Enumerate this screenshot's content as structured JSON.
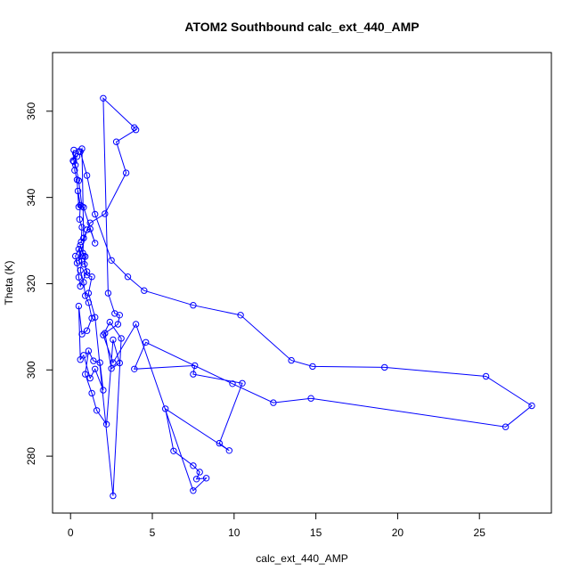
{
  "chart_data": {
    "type": "line",
    "title": "ATOM2 Southbound calc_ext_440_AMP",
    "xlabel": "calc_ext_440_AMP",
    "ylabel": "Theta (K)",
    "xlim": [
      -1.1,
      29.4
    ],
    "ylim": [
      266.8,
      373.6
    ],
    "x_ticks": [
      0,
      5,
      10,
      15,
      20,
      25
    ],
    "y_ticks": [
      280,
      300,
      320,
      340,
      360
    ],
    "x_tick_labels": [
      "0",
      "5",
      "10",
      "15",
      "20",
      "25"
    ],
    "y_tick_labels": [
      "280",
      "300",
      "320",
      "340",
      "360"
    ],
    "grid": false,
    "legend": "none",
    "series_color": "#0000ff",
    "marker": "open-circle",
    "series": [
      {
        "x": [
          0.2,
          0.15,
          0.3,
          0.25,
          0.4,
          0.5,
          0.45,
          0.6,
          0.55,
          0.7,
          0.65,
          0.8,
          0.75,
          0.9,
          0.85,
          1.0,
          0.6,
          0.5,
          0.4,
          0.3,
          0.5,
          0.7,
          0.6,
          0.8,
          0.9,
          1.1,
          1.3,
          1.0,
          0.7,
          0.5,
          0.6,
          0.8,
          1.2,
          1.5,
          2.0,
          1.8,
          1.4,
          1.1,
          0.9,
          1.3,
          1.6,
          2.2,
          2.6,
          3.0,
          2.5,
          2.1,
          2.9,
          3.0,
          2.7,
          2.3,
          2.0,
          3.9,
          4.0,
          2.8,
          3.4,
          2.1,
          1.2,
          0.8,
          0.7,
          0.6,
          1.0,
          1.5,
          2.5,
          3.5,
          4.5,
          7.5,
          10.4,
          13.5,
          14.8,
          19.2,
          25.4,
          28.2,
          26.6,
          14.7,
          12.4,
          9.9,
          4.6,
          3.9,
          7.6,
          7.5,
          10.5,
          9.1,
          9.7,
          5.8,
          6.3,
          7.5,
          7.9,
          7.7,
          8.3,
          7.5,
          4.0,
          2.6,
          2.0,
          2.4,
          3.1,
          2.6,
          1.5,
          1.1,
          1.3,
          1.0,
          0.8,
          0.6,
          0.5,
          1.0,
          1.2,
          1.5,
          0.8,
          0.7,
          0.5,
          0.3,
          0.2,
          0.4,
          0.5
        ],
        "y": [
          351.0,
          348.5,
          350.2,
          346.3,
          344.1,
          337.8,
          341.5,
          338.2,
          334.9,
          333.1,
          329.7,
          330.6,
          327.1,
          326.3,
          324.5,
          322.8,
          319.4,
          321.5,
          324.8,
          326.4,
          328.0,
          325.2,
          323.1,
          320.3,
          317.2,
          315.6,
          312.0,
          309.1,
          308.3,
          314.8,
          302.4,
          303.4,
          298.1,
          300.2,
          295.3,
          301.7,
          302.1,
          304.4,
          299.0,
          294.6,
          290.6,
          287.4,
          307.0,
          301.6,
          300.3,
          308.5,
          310.6,
          312.7,
          313.1,
          317.8,
          363.0,
          356.2,
          355.7,
          352.9,
          345.7,
          336.2,
          334.1,
          330.6,
          351.3,
          350.6,
          345.1,
          336.1,
          325.4,
          321.6,
          318.4,
          315.0,
          312.7,
          302.2,
          300.8,
          300.6,
          298.5,
          291.7,
          286.8,
          293.4,
          292.4,
          296.8,
          306.4,
          300.2,
          301.0,
          299.0,
          296.9,
          283.0,
          281.3,
          291.0,
          281.2,
          277.8,
          276.3,
          274.7,
          274.9,
          272.0,
          310.6,
          301.7,
          308.1,
          311.1,
          307.3,
          270.8,
          312.2,
          317.8,
          321.6,
          322.0,
          326.4,
          328.9,
          325.3,
          332.5,
          332.7,
          329.4,
          337.7,
          337.9,
          343.9,
          347.5,
          348.3,
          349.5,
          350.7
        ]
      }
    ]
  }
}
